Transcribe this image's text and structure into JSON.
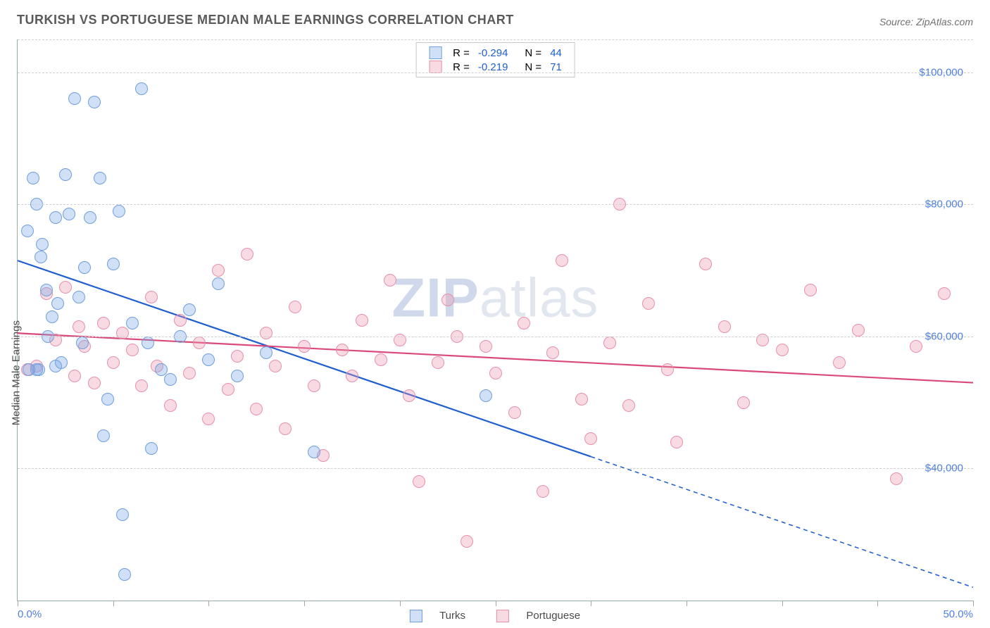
{
  "title": "TURKISH VS PORTUGUESE MEDIAN MALE EARNINGS CORRELATION CHART",
  "source_label": "Source: ZipAtlas.com",
  "watermark_bold": "ZIP",
  "watermark_rest": "atlas",
  "ylabel": "Median Male Earnings",
  "chart": {
    "type": "scatter",
    "xlim": [
      0,
      50
    ],
    "ylim": [
      20000,
      105000
    ],
    "x_tick_step_pct": 5,
    "x_min_label": "0.0%",
    "x_max_label": "50.0%",
    "y_ticks": [
      40000,
      60000,
      80000,
      100000
    ],
    "y_tick_labels": [
      "$40,000",
      "$60,000",
      "$80,000",
      "$100,000"
    ],
    "grid_color": "#cfcfcf",
    "axis_color": "#99aaaa",
    "background_color": "#ffffff",
    "label_color": "#4f7fe0",
    "marker_radius": 9,
    "marker_border": 1.5,
    "line_width": 2.2
  },
  "series": [
    {
      "key": "turks",
      "label": "Turks",
      "fill": "rgba(120,165,230,0.35)",
      "stroke": "#6f9edd",
      "line_color": "#1f5fd0",
      "R": "-0.294",
      "N": "44",
      "regression": {
        "x1": 0,
        "y1": 71500,
        "x2": 50,
        "y2": 22000,
        "dash_from_x": 30
      },
      "points": [
        [
          0.5,
          76000
        ],
        [
          0.8,
          84000
        ],
        [
          1.0,
          80000
        ],
        [
          1.1,
          55000
        ],
        [
          1.2,
          72000
        ],
        [
          1.3,
          74000
        ],
        [
          1.5,
          67000
        ],
        [
          1.6,
          60000
        ],
        [
          1.8,
          63000
        ],
        [
          2.0,
          78000
        ],
        [
          2.1,
          65000
        ],
        [
          2.3,
          56000
        ],
        [
          2.5,
          84500
        ],
        [
          2.7,
          78500
        ],
        [
          3.0,
          96000
        ],
        [
          3.2,
          66000
        ],
        [
          3.4,
          59000
        ],
        [
          3.5,
          70500
        ],
        [
          3.8,
          78000
        ],
        [
          4.0,
          95500
        ],
        [
          4.3,
          84000
        ],
        [
          4.5,
          45000
        ],
        [
          4.7,
          50500
        ],
        [
          5.0,
          71000
        ],
        [
          5.3,
          79000
        ],
        [
          5.5,
          33000
        ],
        [
          5.6,
          24000
        ],
        [
          6.0,
          62000
        ],
        [
          6.5,
          97500
        ],
        [
          6.8,
          59000
        ],
        [
          7.0,
          43000
        ],
        [
          7.5,
          55000
        ],
        [
          8.0,
          53500
        ],
        [
          8.5,
          60000
        ],
        [
          9.0,
          64000
        ],
        [
          10.0,
          56500
        ],
        [
          10.5,
          68000
        ],
        [
          11.5,
          54000
        ],
        [
          13.0,
          57500
        ],
        [
          15.5,
          42500
        ],
        [
          24.5,
          51000
        ],
        [
          1.0,
          55000
        ],
        [
          2.0,
          55500
        ],
        [
          0.6,
          55000
        ]
      ]
    },
    {
      "key": "portuguese",
      "label": "Portuguese",
      "fill": "rgba(235,150,175,0.35)",
      "stroke": "#e690ac",
      "line_color": "#d94a7a",
      "R": "-0.219",
      "N": "71",
      "regression": {
        "x1": 0,
        "y1": 60500,
        "x2": 50,
        "y2": 53000,
        "dash_from_x": null
      },
      "points": [
        [
          0.5,
          55000
        ],
        [
          1.5,
          66500
        ],
        [
          2.0,
          59500
        ],
        [
          2.5,
          67500
        ],
        [
          3.0,
          54000
        ],
        [
          3.2,
          61500
        ],
        [
          3.5,
          58500
        ],
        [
          4.0,
          53000
        ],
        [
          4.5,
          62000
        ],
        [
          5.0,
          56000
        ],
        [
          5.5,
          60500
        ],
        [
          6.0,
          58000
        ],
        [
          6.5,
          52500
        ],
        [
          7.0,
          66000
        ],
        [
          7.3,
          55500
        ],
        [
          8.0,
          49500
        ],
        [
          8.5,
          62500
        ],
        [
          9.0,
          54500
        ],
        [
          9.5,
          59000
        ],
        [
          10.0,
          47500
        ],
        [
          10.5,
          70000
        ],
        [
          11.0,
          52000
        ],
        [
          11.5,
          57000
        ],
        [
          12.0,
          72500
        ],
        [
          12.5,
          49000
        ],
        [
          13.0,
          60500
        ],
        [
          13.5,
          55500
        ],
        [
          14.0,
          46000
        ],
        [
          14.5,
          64500
        ],
        [
          15.0,
          58500
        ],
        [
          15.5,
          52500
        ],
        [
          16.0,
          42000
        ],
        [
          17.0,
          58000
        ],
        [
          17.5,
          54000
        ],
        [
          18.0,
          62500
        ],
        [
          19.0,
          56500
        ],
        [
          19.5,
          68500
        ],
        [
          20.0,
          59500
        ],
        [
          20.5,
          51000
        ],
        [
          21.0,
          38000
        ],
        [
          22.0,
          56000
        ],
        [
          22.5,
          65500
        ],
        [
          23.0,
          60000
        ],
        [
          23.5,
          29000
        ],
        [
          24.5,
          58500
        ],
        [
          25.0,
          54500
        ],
        [
          26.0,
          48500
        ],
        [
          26.5,
          62000
        ],
        [
          27.5,
          36500
        ],
        [
          28.0,
          57500
        ],
        [
          28.5,
          71500
        ],
        [
          29.5,
          50500
        ],
        [
          30.0,
          44500
        ],
        [
          31.0,
          59000
        ],
        [
          31.5,
          80000
        ],
        [
          32.0,
          49500
        ],
        [
          33.0,
          65000
        ],
        [
          34.0,
          55000
        ],
        [
          34.5,
          44000
        ],
        [
          36.0,
          71000
        ],
        [
          37.0,
          61500
        ],
        [
          38.0,
          50000
        ],
        [
          39.0,
          59500
        ],
        [
          40.0,
          58000
        ],
        [
          41.5,
          67000
        ],
        [
          43.0,
          56000
        ],
        [
          44.0,
          61000
        ],
        [
          46.0,
          38500
        ],
        [
          47.0,
          58500
        ],
        [
          48.5,
          66500
        ],
        [
          1.0,
          55500
        ]
      ]
    }
  ],
  "legend_top": {
    "R_label": "R =",
    "N_label": "N ="
  }
}
